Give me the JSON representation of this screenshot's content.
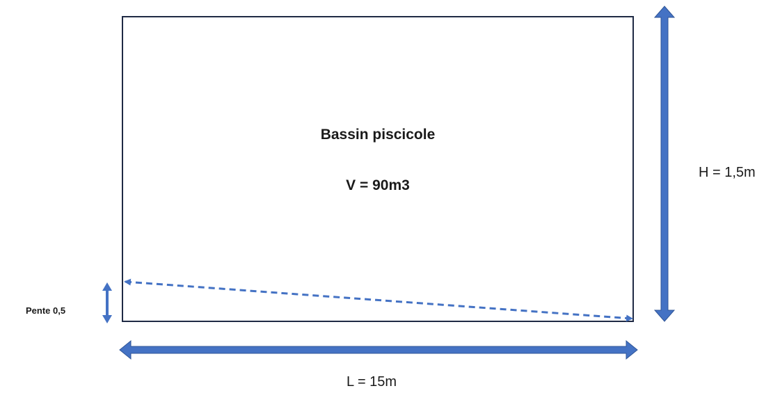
{
  "diagram": {
    "title": "Bassin piscicole",
    "volume_label": "V = 90m3",
    "height_label": "H = 1,5m",
    "length_label": "L = 15m",
    "slope_label": "Pente 0,5"
  },
  "colors": {
    "basin_outline": "#1f2a44",
    "arrow_fill": "#4472c4",
    "arrow_stroke": "#2f5597",
    "slope_line": "#4472c4",
    "text": "#1a1a1a"
  },
  "icons": {
    "height_arrow": "double-arrow-vertical-icon",
    "length_arrow": "double-arrow-horizontal-icon",
    "slope_arrow": "small-double-arrow-vertical-icon",
    "slope_line": "dashed-double-arrow-icon"
  }
}
